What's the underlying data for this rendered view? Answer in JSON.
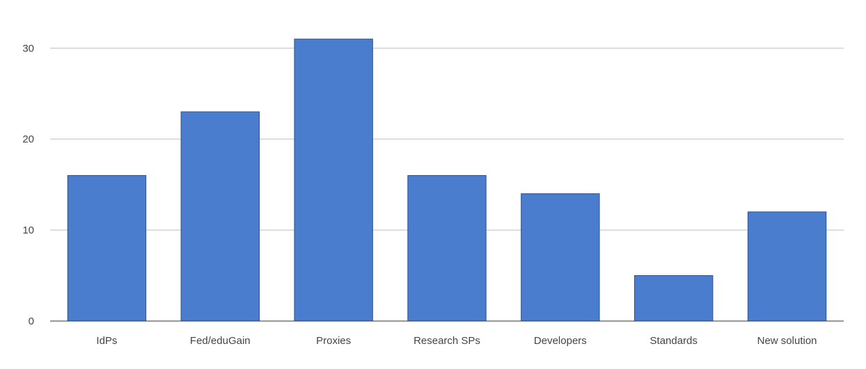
{
  "chart_data": {
    "type": "bar",
    "title": "",
    "xlabel": "",
    "ylabel": "",
    "categories": [
      "IdPs",
      "Fed/eduGain",
      "Proxies",
      "Research SPs",
      "Developers",
      "Standards",
      "New solution"
    ],
    "values": [
      16,
      23,
      31,
      16,
      14,
      5,
      12
    ],
    "ylim": [
      0,
      33
    ],
    "yticks": [
      0,
      10,
      20,
      30
    ],
    "grid": true,
    "legend": "none",
    "colors": {
      "bar": "#4a7dce",
      "bar_edge": "#2b4f8e",
      "grid": "#bdbdbd",
      "axis": "#333333",
      "text": "#444444"
    }
  }
}
